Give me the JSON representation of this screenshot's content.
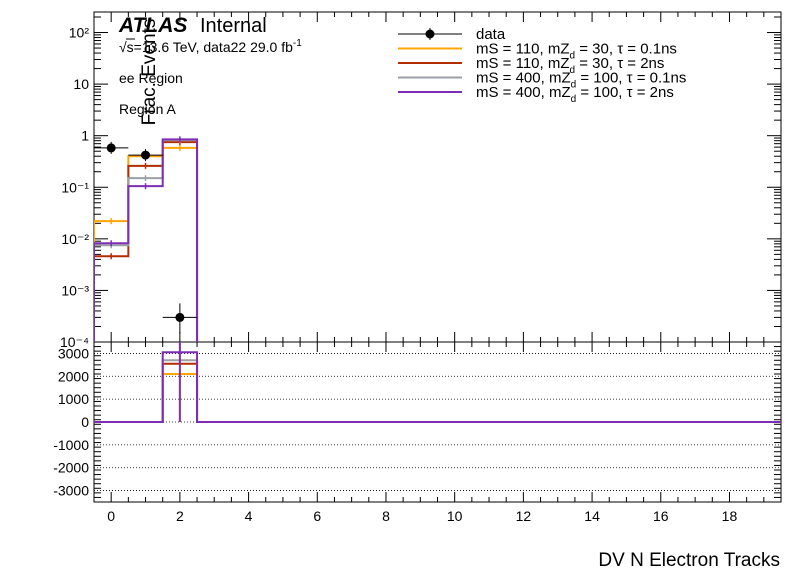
{
  "chart_data": {
    "type": "histogram",
    "atlas_label": "ATLAS",
    "atlas_status": "Internal",
    "energy_text": "√s=13.6 TeV, data22 29.0 fb",
    "energy_sup": "-1",
    "region_1": "ee Region",
    "region_2": "Region A",
    "xlabel": "DV N Electron Tracks",
    "ylabel_top": "Frac. Events",
    "xlim": [
      -0.5,
      19.5
    ],
    "x_ticks": [
      "0",
      "2",
      "4",
      "6",
      "8",
      "10",
      "12",
      "14",
      "16",
      "18"
    ],
    "top_panel": {
      "scale": "log",
      "ylim": [
        0.0001,
        250
      ],
      "y_ticks": [
        "10⁻⁴",
        "10⁻³",
        "10⁻²",
        "10⁻¹",
        "1",
        "10",
        "10²"
      ],
      "bin_edges": [
        -0.5,
        0.5,
        1.5,
        2.5,
        19.5
      ],
      "data": {
        "name": "data",
        "points": [
          {
            "x": 0,
            "y": 0.58
          },
          {
            "x": 1,
            "y": 0.42
          },
          {
            "x": 2,
            "y": 0.0003
          }
        ]
      },
      "series": [
        {
          "name_parts": [
            "mS = 110, mZ",
            "d",
            " = 30, τ = 0.1ns"
          ],
          "color": "#ffa500",
          "values": [
            0.022,
            0.4,
            0.58,
            0
          ]
        },
        {
          "name_parts": [
            "mS = 110, mZ",
            "d",
            " = 30, τ = 2ns"
          ],
          "color": "#b22d00",
          "values": [
            0.0046,
            0.26,
            0.75,
            0
          ]
        },
        {
          "name_parts": [
            "mS = 400, mZ",
            "d",
            " = 100, τ = 0.1ns"
          ],
          "color": "#9aa0a6",
          "values": [
            0.0075,
            0.15,
            0.82,
            0
          ]
        },
        {
          "name_parts": [
            "mS = 400, mZ",
            "d",
            " = 100, τ = 2ns"
          ],
          "color": "#7d2eb4",
          "values": [
            0.0082,
            0.105,
            0.85,
            0
          ]
        }
      ]
    },
    "bottom_panel": {
      "scale": "linear",
      "ylim": [
        -3500,
        3500
      ],
      "y_ticks": [
        -3000,
        -2000,
        -1000,
        0,
        1000,
        2000,
        3000
      ],
      "grid": true,
      "series_values": [
        [
          0,
          0,
          2100,
          0
        ],
        [
          0,
          0,
          2550,
          0
        ],
        [
          0,
          0,
          2700,
          0
        ],
        [
          0,
          0,
          3050,
          0
        ]
      ]
    }
  }
}
